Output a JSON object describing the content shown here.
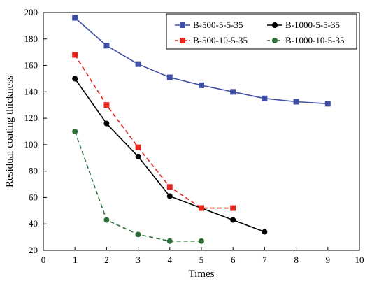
{
  "chart_data": {
    "type": "line",
    "title": "",
    "xlabel": "Times",
    "ylabel": "Residual coating thickness",
    "xlim": [
      0,
      10
    ],
    "ylim": [
      20,
      200
    ],
    "xticks": [
      0,
      1,
      2,
      3,
      4,
      5,
      6,
      7,
      8,
      9,
      10
    ],
    "yticks": [
      20,
      40,
      60,
      80,
      100,
      120,
      140,
      160,
      180,
      200
    ],
    "grid": false,
    "legend_position": "top-right",
    "series": [
      {
        "name": "B-500-5-5-35",
        "color": "#3f4fa3",
        "marker": "square",
        "line_style": "solid",
        "x": [
          1,
          2,
          3,
          4,
          5,
          6,
          7,
          8,
          9
        ],
        "y": [
          196,
          175,
          161,
          151,
          145,
          140,
          135,
          132.5,
          131
        ]
      },
      {
        "name": "B-1000-5-5-35",
        "color": "#000000",
        "marker": "circle",
        "line_style": "solid",
        "x": [
          1,
          2,
          3,
          4,
          5,
          6,
          7
        ],
        "y": [
          150,
          116,
          91,
          61,
          52,
          43,
          34
        ]
      },
      {
        "name": "B-500-10-5-35",
        "color": "#e8251e",
        "marker": "square",
        "line_style": "dashed",
        "x": [
          1,
          2,
          3,
          4,
          5,
          6
        ],
        "y": [
          168,
          130,
          98,
          68,
          52,
          52
        ]
      },
      {
        "name": "B-1000-10-5-35",
        "color": "#2e6e3a",
        "marker": "circle",
        "line_style": "dashed",
        "x": [
          1,
          2,
          3,
          4,
          5
        ],
        "y": [
          110,
          43,
          32,
          27,
          27
        ]
      }
    ]
  }
}
